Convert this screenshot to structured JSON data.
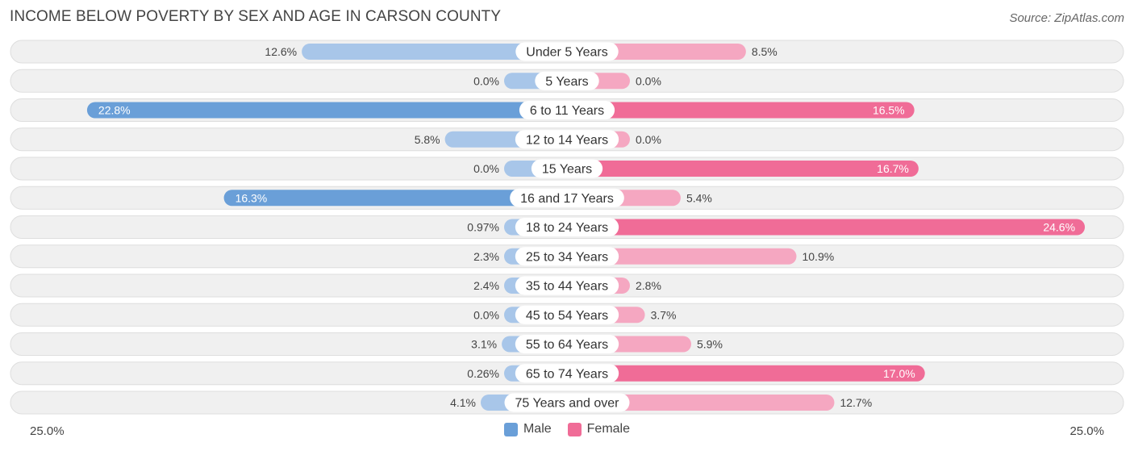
{
  "header": {
    "title": "INCOME BELOW POVERTY BY SEX AND AGE IN CARSON COUNTY",
    "source": "Source: ZipAtlas.com"
  },
  "colors": {
    "male_dark": "#6a9fd8",
    "male_light": "#a8c6e9",
    "female_dark": "#f06c97",
    "female_light": "#f5a7c1",
    "row_bg": "#f0f0f0",
    "row_border": "#dedede"
  },
  "chart_data": {
    "type": "bar",
    "orientation": "horizontal-diverging",
    "title": "INCOME BELOW POVERTY BY SEX AND AGE IN CARSON COUNTY",
    "categories": [
      "Under 5 Years",
      "5 Years",
      "6 to 11 Years",
      "12 to 14 Years",
      "15 Years",
      "16 and 17 Years",
      "18 to 24 Years",
      "25 to 34 Years",
      "35 to 44 Years",
      "45 to 54 Years",
      "55 to 64 Years",
      "65 to 74 Years",
      "75 Years and over"
    ],
    "series": [
      {
        "name": "Male",
        "values": [
          12.6,
          0.0,
          22.8,
          5.8,
          0.0,
          16.3,
          0.97,
          2.3,
          2.4,
          0.0,
          3.1,
          0.26,
          4.1
        ],
        "labels": [
          "12.6%",
          "0.0%",
          "22.8%",
          "5.8%",
          "0.0%",
          "16.3%",
          "0.97%",
          "2.3%",
          "2.4%",
          "0.0%",
          "3.1%",
          "0.26%",
          "4.1%"
        ]
      },
      {
        "name": "Female",
        "values": [
          8.5,
          0.0,
          16.5,
          0.0,
          16.7,
          5.4,
          24.6,
          10.9,
          2.8,
          3.7,
          5.9,
          17.0,
          12.7
        ],
        "labels": [
          "8.5%",
          "0.0%",
          "16.5%",
          "0.0%",
          "16.7%",
          "5.4%",
          "24.6%",
          "10.9%",
          "2.8%",
          "3.7%",
          "5.9%",
          "17.0%",
          "12.7%"
        ]
      }
    ],
    "xlim": [
      -25,
      25
    ],
    "axis_min_label": "25.0%",
    "axis_max_label": "25.0%",
    "legend": [
      "Male",
      "Female"
    ],
    "legend_position": "bottom-center",
    "grid": false
  }
}
